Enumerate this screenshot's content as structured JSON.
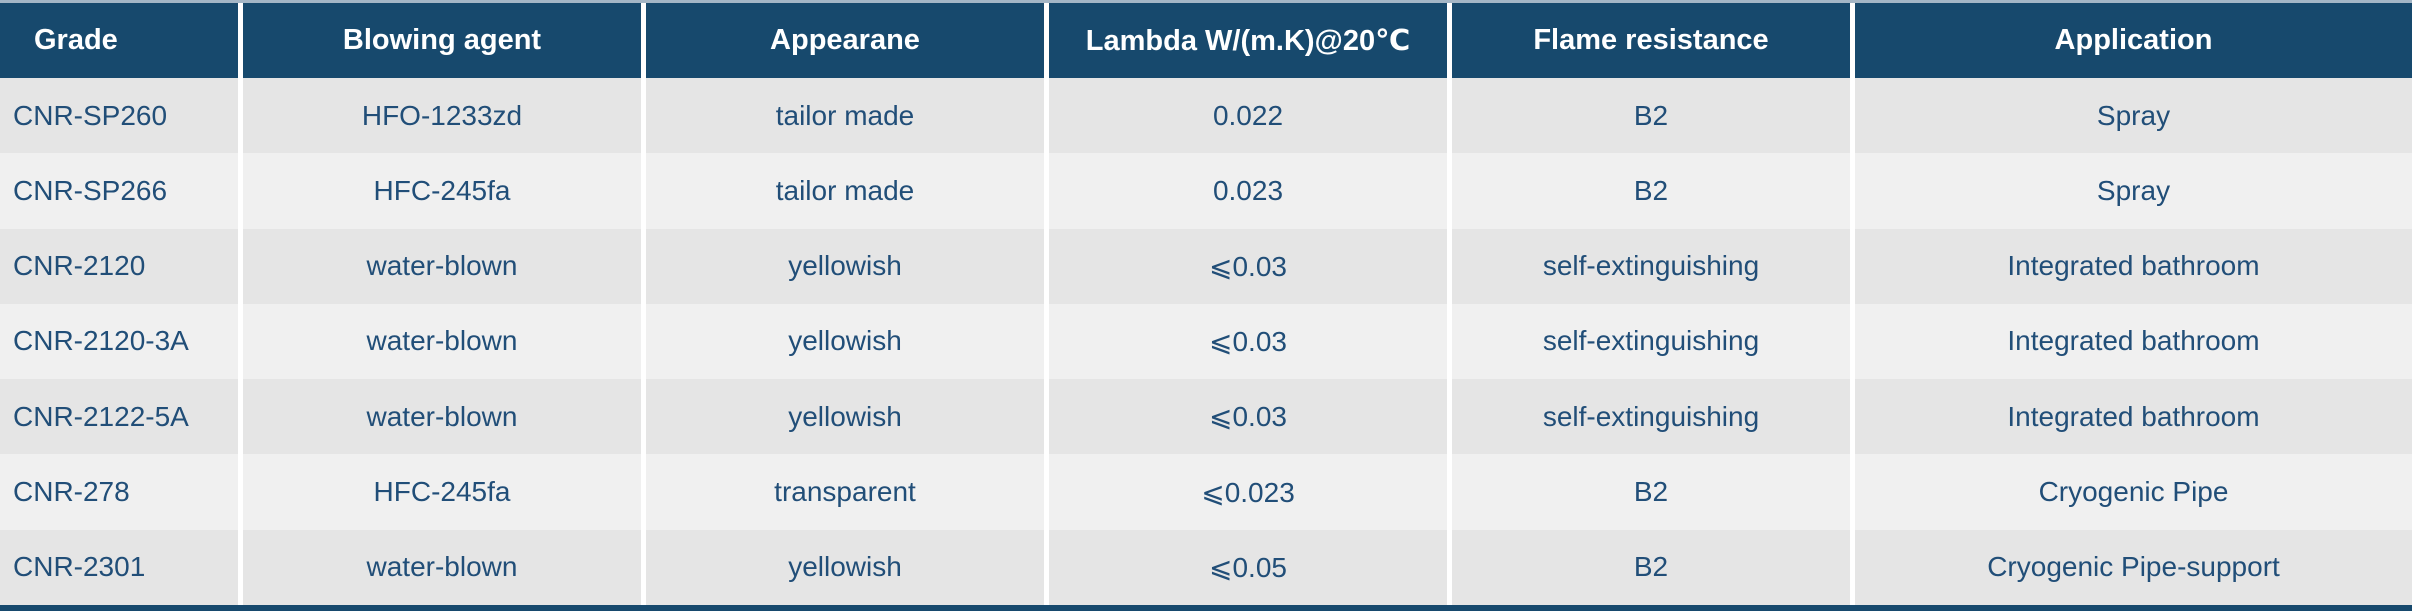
{
  "table": {
    "columns": [
      {
        "label": "Grade"
      },
      {
        "label": "Blowing agent"
      },
      {
        "label": "Appearane"
      },
      {
        "label": "Lambda W/(m.K)@20℃"
      },
      {
        "label": "Flame resistance"
      },
      {
        "label": "Application"
      }
    ],
    "rows": [
      [
        "CNR-SP260",
        "HFO-1233zd",
        "tailor made",
        "0.022",
        "B2",
        "Spray"
      ],
      [
        "CNR-SP266",
        "HFC-245fa",
        "tailor made",
        "0.023",
        "B2",
        "Spray"
      ],
      [
        "CNR-2120",
        "water-blown",
        "yellowish",
        "⩽0.03",
        "self-extinguishing",
        "Integrated bathroom"
      ],
      [
        "CNR-2120-3A",
        "water-blown",
        "yellowish",
        "⩽0.03",
        "self-extinguishing",
        "Integrated bathroom"
      ],
      [
        "CNR-2122-5A",
        "water-blown",
        "yellowish",
        "⩽0.03",
        "self-extinguishing",
        "Integrated bathroom"
      ],
      [
        "CNR-278",
        "HFC-245fa",
        "transparent",
        "⩽0.023",
        "B2",
        "Cryogenic Pipe"
      ],
      [
        "CNR-2301",
        "water-blown",
        "yellowish",
        "⩽0.05",
        "B2",
        "Cryogenic Pipe-support"
      ]
    ],
    "colors": {
      "header_bg": "#17496d",
      "header_text": "#ffffff",
      "row_dark": "#e5e5e5",
      "row_light": "#f0f0f0",
      "cell_text": "#214e78",
      "divider": "#ffffff",
      "top_edge_line": "#a4b6c6",
      "bottom_bar": "#17496d"
    }
  }
}
